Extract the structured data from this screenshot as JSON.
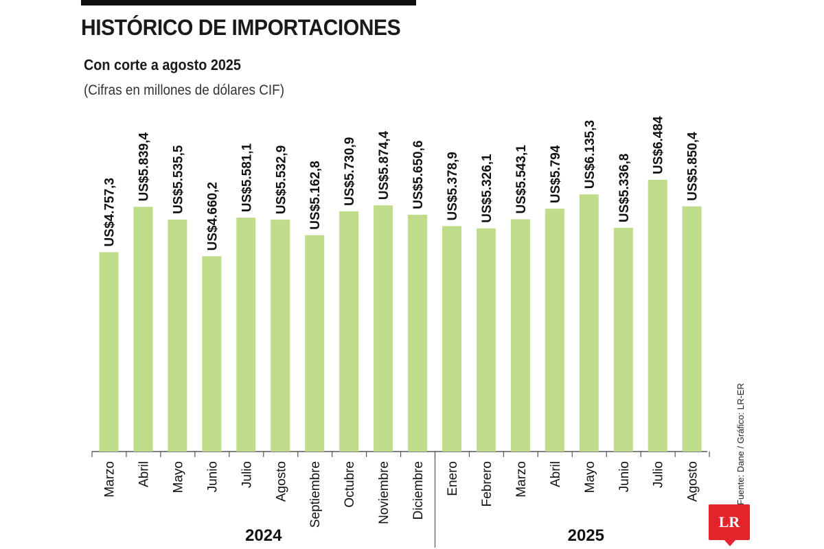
{
  "header": {
    "title": "HISTÓRICO DE IMPORTACIONES",
    "subtitle": "Con corte a agosto 2025",
    "note": "(Cifras en millones de dólares CIF)"
  },
  "colors": {
    "bar": "#bfdc8a",
    "axis": "#555555",
    "text": "#111111",
    "logo": "#e3242b"
  },
  "chart_data": {
    "type": "bar",
    "title": "HISTÓRICO DE IMPORTACIONES",
    "subtitle": "Con corte a agosto 2025",
    "ylabel": "Cifras en millones de dólares CIF",
    "ylim": [
      0,
      7000
    ],
    "grid": false,
    "categories": [
      "Marzo",
      "Abril",
      "Mayo",
      "Junio",
      "Julio",
      "Agosto",
      "Septiembre",
      "Octubre",
      "Noviembre",
      "Diciembre",
      "Enero",
      "Febrero",
      "Marzo",
      "Abril",
      "Mayo",
      "Junio",
      "Julio",
      "Agosto"
    ],
    "values": [
      4757.3,
      5839.4,
      5535.5,
      4660.2,
      5581.1,
      5532.9,
      5162.8,
      5730.9,
      5874.4,
      5650.6,
      5378.9,
      5326.1,
      5543.1,
      5794,
      6135.3,
      5336.8,
      6484,
      5850.4
    ],
    "value_labels": [
      "US$4.757,3",
      "US$5.839,4",
      "US$5.535,5",
      "US$4.660,2",
      "US$5.581,1",
      "US$5.532,9",
      "US$5.162,8",
      "US$5.730,9",
      "US$5.874,4",
      "US$5.650,6",
      "US$5.378,9",
      "US$5.326,1",
      "US$5.543,1",
      "US$5.794",
      "US$6.135,3",
      "US$5.336,8",
      "US$6.484",
      "US$5.850,4"
    ],
    "groups": [
      {
        "label": "2024",
        "count": 10
      },
      {
        "label": "2025",
        "count": 8
      }
    ]
  },
  "footer": {
    "source": "Fuente: Dane / Gráfico: LR-ER",
    "logo_text": "LR"
  }
}
